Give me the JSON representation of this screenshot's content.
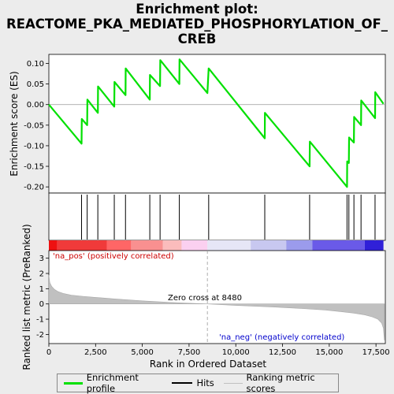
{
  "title_lines": [
    "Enrichment plot:",
    "REACTOME_PKA_MEDIATED_PHOSPHORYLATION_OF_",
    "CREB"
  ],
  "legend": {
    "items": [
      {
        "label": "Enrichment profile",
        "color": "#00e000"
      },
      {
        "label": "Hits",
        "color": "#000000"
      },
      {
        "label": "Ranking metric scores",
        "color": "#c0c0c0"
      }
    ]
  },
  "chart_data": [
    {
      "type": "line",
      "name": "enrichment-profile",
      "ylabel": "Enrichment score (ES)",
      "xlim": [
        0,
        18000
      ],
      "ylim": [
        -0.215,
        0.122
      ],
      "yticks": [
        0.1,
        0.05,
        0.0,
        -0.05,
        -0.1,
        -0.15,
        -0.2
      ],
      "ytick_labels": [
        "0.10",
        "0.05",
        "0.00",
        "-0.05",
        "-0.10",
        "-0.15",
        "-0.20"
      ],
      "grid": false,
      "color": "#00e000",
      "x": [
        0,
        1750,
        1760,
        2050,
        2060,
        2620,
        2630,
        3500,
        3510,
        4100,
        4110,
        5400,
        5410,
        5950,
        5960,
        6980,
        6990,
        8480,
        8550,
        11550,
        11560,
        13950,
        13960,
        15950,
        15960,
        16050,
        16060,
        16320,
        16330,
        16700,
        16710,
        17450,
        17460,
        17900
      ],
      "y": [
        0.0,
        -0.095,
        -0.035,
        -0.05,
        0.012,
        -0.02,
        0.044,
        -0.005,
        0.055,
        0.023,
        0.088,
        0.012,
        0.072,
        0.045,
        0.108,
        0.05,
        0.11,
        0.028,
        0.088,
        -0.082,
        -0.02,
        -0.15,
        -0.09,
        -0.2,
        -0.138,
        -0.142,
        -0.08,
        -0.092,
        -0.03,
        -0.05,
        0.01,
        -0.033,
        0.03,
        0.002
      ]
    },
    {
      "type": "bar",
      "name": "hits",
      "x": [
        1750,
        2050,
        2620,
        3500,
        4100,
        5400,
        5950,
        6980,
        8550,
        11550,
        13950,
        15950,
        16050,
        16320,
        16700,
        17450
      ]
    },
    {
      "type": "area",
      "name": "ranking-metric",
      "xlabel": "Rank in Ordered Dataset",
      "ylabel": "Ranked list metric (PreRanked)",
      "xlim": [
        0,
        18000
      ],
      "ylim": [
        -2.6,
        3.5
      ],
      "yticks": [
        3,
        2,
        1,
        0,
        -1,
        -2
      ],
      "ytick_labels": [
        "3",
        "2",
        "1",
        "0",
        "-1",
        "-2"
      ],
      "xticks": [
        0,
        2500,
        5000,
        7500,
        10000,
        12500,
        15000,
        17500
      ],
      "xtick_labels": [
        "0",
        "2,500",
        "5,000",
        "7,500",
        "10,000",
        "12,500",
        "15,000",
        "17,500"
      ],
      "color": "#c0c0c0",
      "x": [
        0,
        50,
        150,
        300,
        500,
        800,
        1200,
        1800,
        2500,
        3500,
        5000,
        6500,
        8480,
        10000,
        12000,
        13500,
        14800,
        15600,
        16300,
        16900,
        17300,
        17600,
        17800,
        17900,
        17950
      ],
      "y": [
        1.9,
        1.4,
        1.15,
        0.95,
        0.8,
        0.68,
        0.58,
        0.5,
        0.43,
        0.33,
        0.2,
        0.1,
        0.0,
        -0.1,
        -0.2,
        -0.3,
        -0.4,
        -0.5,
        -0.6,
        -0.72,
        -0.85,
        -1.0,
        -1.25,
        -1.6,
        -2.4
      ],
      "zero_cross": 8480,
      "annotations": {
        "zero": "Zero cross at 8480",
        "pos": "'na_pos' (positively correlated)",
        "neg": "'na_neg' (negatively correlated)"
      }
    }
  ],
  "color_bar": {
    "segments": [
      {
        "from": 0,
        "to": 450,
        "color": "#ee1111"
      },
      {
        "from": 450,
        "to": 3100,
        "color": "#f03a3a"
      },
      {
        "from": 3100,
        "to": 4400,
        "color": "#f66"
      },
      {
        "from": 4400,
        "to": 6100,
        "color": "#f99090"
      },
      {
        "from": 6100,
        "to": 7100,
        "color": "#fbbcbc"
      },
      {
        "from": 7100,
        "to": 8480,
        "color": "#fbd0f0"
      },
      {
        "from": 8480,
        "to": 10800,
        "color": "#e6e6f6"
      },
      {
        "from": 10800,
        "to": 12700,
        "color": "#c8c8f0"
      },
      {
        "from": 12700,
        "to": 14100,
        "color": "#9b9bec"
      },
      {
        "from": 14100,
        "to": 16900,
        "color": "#6a5ae8"
      },
      {
        "from": 16900,
        "to": 17900,
        "color": "#3020d8"
      }
    ]
  }
}
